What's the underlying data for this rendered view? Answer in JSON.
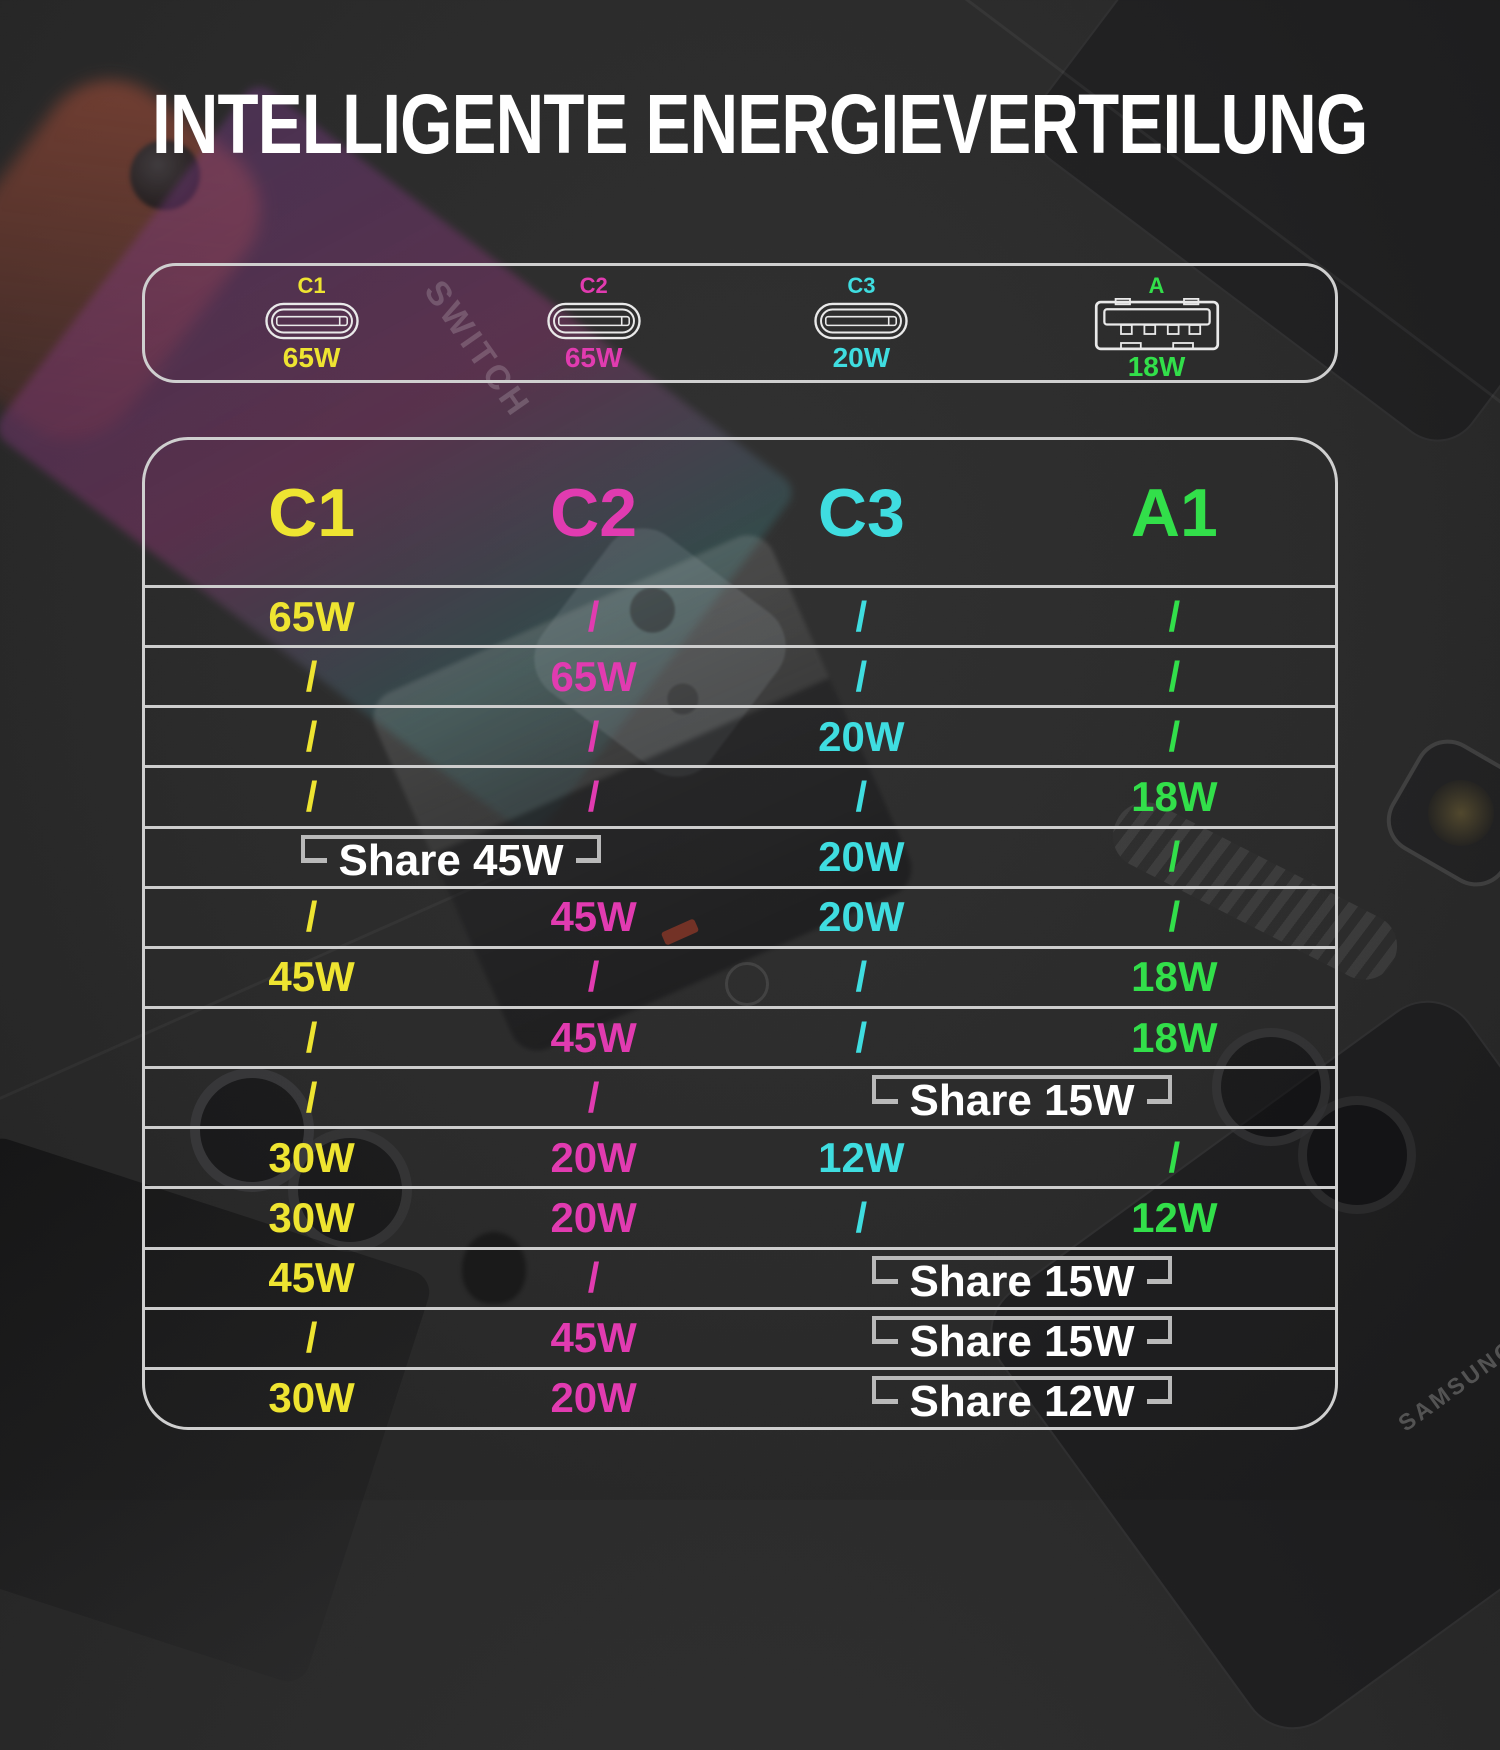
{
  "title": "INTELLIGENTE ENERGIEVERTEILUNG",
  "colors": {
    "background": "#2b2b2b",
    "c1": "#eee431",
    "c2": "#e13bb0",
    "c3": "#3fdde0",
    "a1": "#32df4a",
    "white": "#ffffff",
    "grid_line": "#cdcdcd",
    "panel_border": "#cfcfcf",
    "bracket": "#b9b9b9",
    "port_icon": "#e9e9e9"
  },
  "ports_panel": {
    "ports": [
      {
        "label": "C1",
        "watt": "65W",
        "type": "usb-c",
        "color_key": "c1"
      },
      {
        "label": "C2",
        "watt": "65W",
        "type": "usb-c",
        "color_key": "c2"
      },
      {
        "label": "C3",
        "watt": "20W",
        "type": "usb-c",
        "color_key": "c3"
      },
      {
        "label": "A",
        "watt": "18W",
        "type": "usb-a",
        "color_key": "a1"
      }
    ]
  },
  "chart_data": {
    "type": "table",
    "columns": [
      "C1",
      "C2",
      "C3",
      "A1"
    ],
    "column_color_keys": [
      "c1",
      "c2",
      "c3",
      "a1"
    ],
    "rows": [
      [
        "65W",
        "/",
        "/",
        "/"
      ],
      [
        "/",
        "65W",
        "/",
        "/"
      ],
      [
        "/",
        "/",
        "20W",
        "/"
      ],
      [
        "/",
        "/",
        "/",
        "18W"
      ],
      [
        {
          "share": "Share 45W",
          "cols": [
            1,
            2
          ]
        },
        "20W",
        "/"
      ],
      [
        "/",
        "45W",
        "20W",
        "/"
      ],
      [
        "45W",
        "/",
        "/",
        "18W"
      ],
      [
        "/",
        "45W",
        "/",
        "18W"
      ],
      [
        "/",
        "/",
        {
          "share": "Share 15W",
          "cols": [
            3,
            4
          ]
        }
      ],
      [
        "30W",
        "20W",
        "12W",
        "/"
      ],
      [
        "30W",
        "20W",
        "/",
        "12W"
      ],
      [
        "45W",
        "/",
        {
          "share": "Share 15W",
          "cols": [
            3,
            4
          ]
        }
      ],
      [
        "/",
        "45W",
        {
          "share": "Share 15W",
          "cols": [
            3,
            4
          ]
        }
      ],
      [
        "30W",
        "20W",
        {
          "share": "Share 12W",
          "cols": [
            3,
            4
          ]
        }
      ]
    ]
  },
  "background_decor": {
    "switch_label": "SWITCH",
    "samsung_label": "SAMSUNG"
  }
}
